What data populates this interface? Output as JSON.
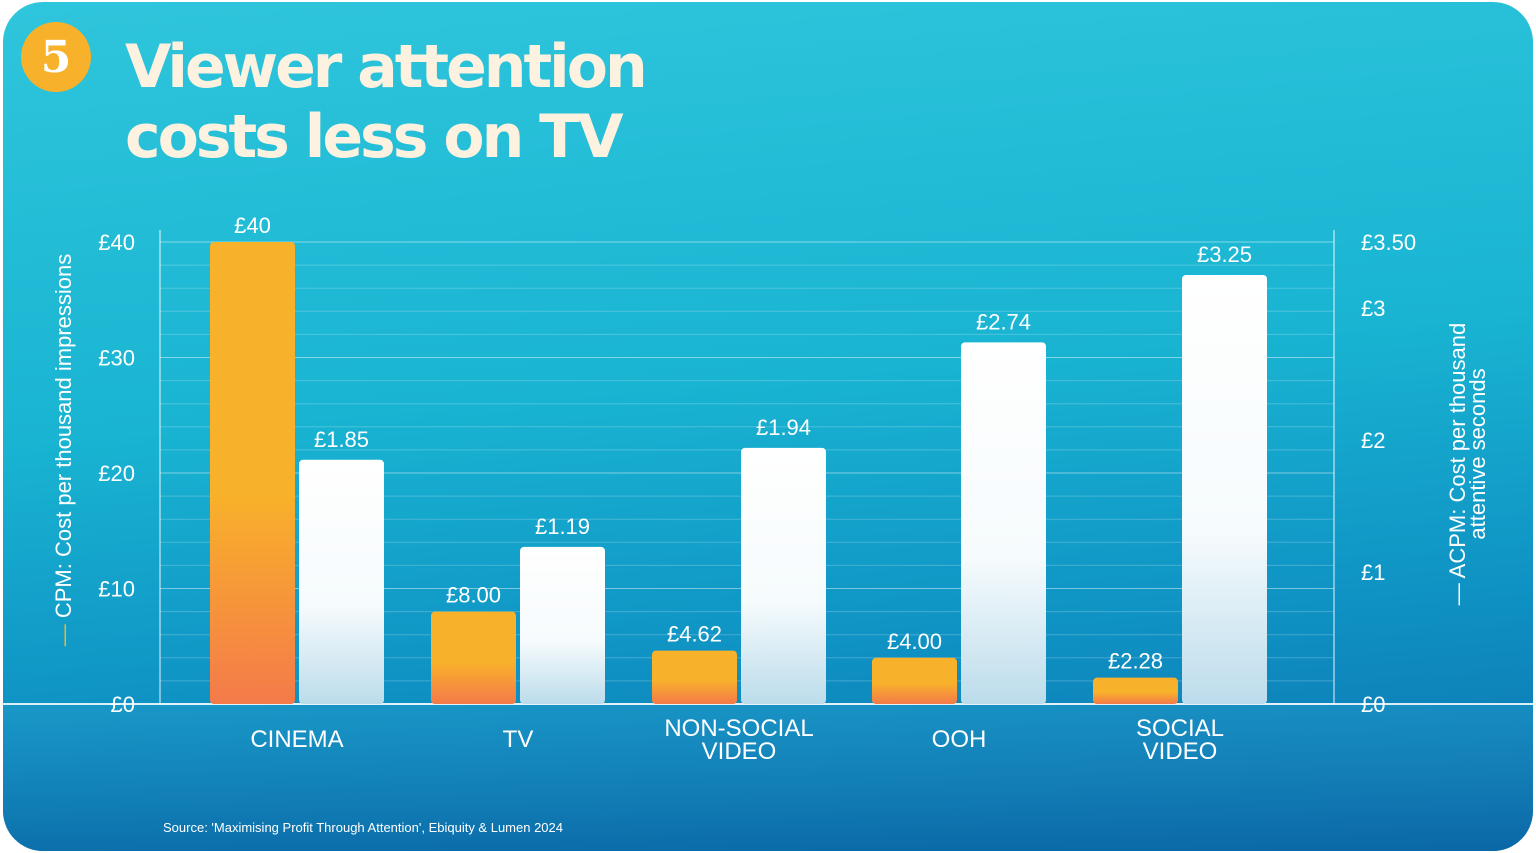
{
  "badge": "5",
  "title_line1": "Viewer attention",
  "title_line2": "costs less on TV",
  "source": "Source: 'Maximising Profit Through Attention', Ebiquity & Lumen 2024",
  "colors": {
    "cpm": "#f8b12a",
    "cpm_bottom": "#f47a4a",
    "acpm": "#ffffff",
    "badge": "#f8b12a"
  },
  "chart_data": {
    "type": "bar",
    "categories": [
      [
        "CINEMA"
      ],
      [
        "TV"
      ],
      [
        "NON-SOCIAL",
        "VIDEO"
      ],
      [
        "OOH"
      ],
      [
        "SOCIAL",
        "VIDEO"
      ]
    ],
    "series": [
      {
        "name": "CPM: Cost per thousand impressions",
        "axis": "left",
        "values": [
          40,
          8,
          4.62,
          4,
          2.28
        ],
        "labels": [
          "£40",
          "£8.00",
          "£4.62",
          "£4.00",
          "£2.28"
        ]
      },
      {
        "name": "ACPM: Cost per thousand attentive seconds",
        "axis": "right",
        "values": [
          1.85,
          1.19,
          1.94,
          2.74,
          3.25
        ],
        "labels": [
          "£1.85",
          "£1.19",
          "£1.94",
          "£2.74",
          "£3.25"
        ]
      }
    ],
    "left_axis": {
      "title": "CPM: Cost per thousand impressions",
      "range": [
        0,
        40
      ],
      "ticks": [
        0,
        10,
        20,
        30,
        40
      ],
      "tick_labels": [
        "£0",
        "£10",
        "£20",
        "£30",
        "£40"
      ]
    },
    "right_axis": {
      "title_lines": [
        "ACPM: Cost per thousand",
        "attentive seconds"
      ],
      "range": [
        0,
        3.5
      ],
      "ticks": [
        0,
        1,
        2,
        3,
        3.5
      ],
      "tick_labels": [
        "£0",
        "£1",
        "£2",
        "£3",
        "£3.50"
      ]
    },
    "grid": true
  }
}
